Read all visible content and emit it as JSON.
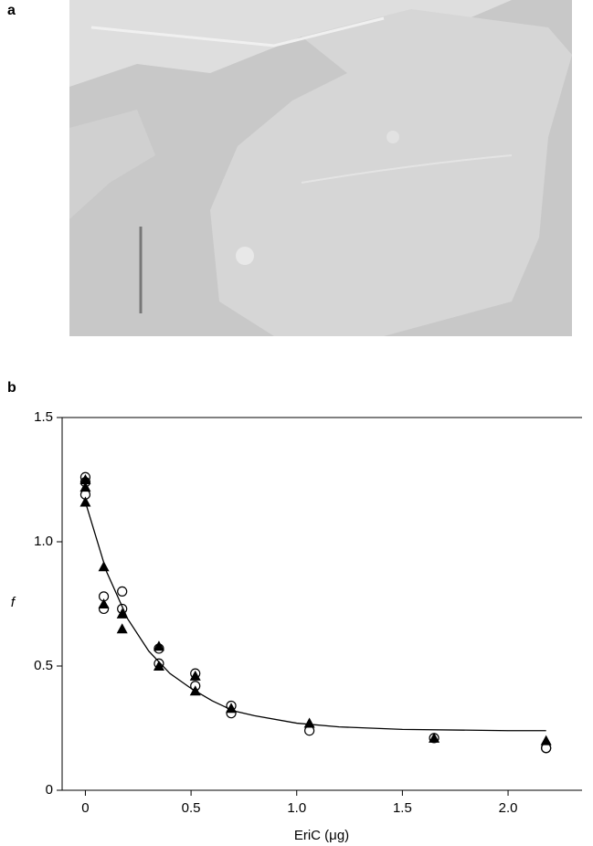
{
  "panel_labels": [
    "a",
    "b"
  ],
  "chart_data": {
    "type": "scatter",
    "xlabel": "EriC (μg)",
    "ylabel": "f",
    "xlim": [
      -0.11,
      2.35
    ],
    "ylim": [
      0,
      1.5
    ],
    "xticks": [
      0,
      0.5,
      {
        "value": 1,
        "label": "1.0"
      },
      1.5,
      {
        "value": 2,
        "label": "2.0"
      }
    ],
    "yticks": [
      0,
      0.5,
      {
        "value": 1,
        "label": "1.0"
      },
      1.5
    ],
    "series": [
      {
        "marker": "circle",
        "color": "#000000",
        "x": [
          0,
          0,
          0,
          0.087,
          0.087,
          0.174,
          0.174,
          0.348,
          0.348,
          0.52,
          0.52,
          0.69,
          0.69,
          1.06,
          1.65,
          2.18,
          2.18
        ],
        "values": [
          1.26,
          1.24,
          1.19,
          0.78,
          0.73,
          0.8,
          0.73,
          0.57,
          0.51,
          0.47,
          0.42,
          0.34,
          0.31,
          0.24,
          0.21,
          0.17,
          0.17
        ]
      },
      {
        "marker": "triangle",
        "color": "#000000",
        "x": [
          0,
          0,
          0,
          0.087,
          0.087,
          0.174,
          0.174,
          0.348,
          0.348,
          0.52,
          0.52,
          0.69,
          1.06,
          1.65,
          2.18
        ],
        "values": [
          1.25,
          1.22,
          1.16,
          0.9,
          0.75,
          0.71,
          0.65,
          0.58,
          0.5,
          0.46,
          0.4,
          0.33,
          0.27,
          0.21,
          0.2
        ]
      },
      {
        "marker": "line",
        "color": "#000000",
        "x": [
          0,
          0.1,
          0.2,
          0.3,
          0.4,
          0.5,
          0.6,
          0.7,
          0.8,
          1.0,
          1.2,
          1.5,
          2.0,
          2.18
        ],
        "values": [
          1.16,
          0.88,
          0.69,
          0.56,
          0.47,
          0.41,
          0.36,
          0.32,
          0.3,
          0.27,
          0.255,
          0.245,
          0.24,
          0.24
        ]
      }
    ]
  }
}
